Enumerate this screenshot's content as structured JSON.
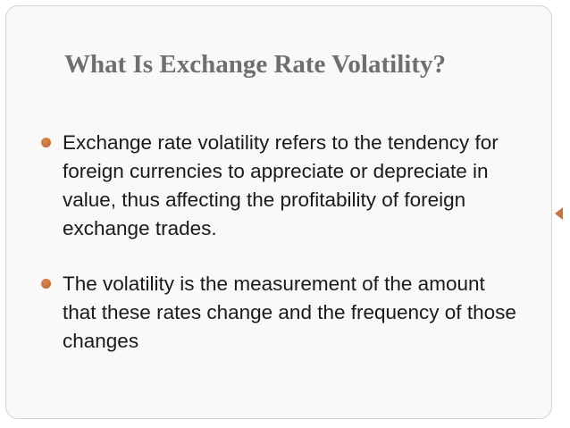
{
  "slide": {
    "title": "What Is Exchange Rate Volatility?",
    "bullets": [
      {
        "text": "Exchange rate volatility refers to the tendency for foreign currencies to appreciate or depreciate in value, thus affecting the profitability of foreign exchange trades."
      },
      {
        "text": "The volatility is the measurement of the amount that these rates change and the frequency of those changes"
      }
    ]
  },
  "colors": {
    "title": "#6f6f6f",
    "body_text": "#1a1a1a",
    "bullet_accent": "#d6804a",
    "frame_border": "#d8d0c8",
    "frame_fill": "#fbf9f7"
  },
  "icons": {
    "bullet": "round-bullet-icon",
    "frame_marker": "triangle-marker-icon"
  }
}
